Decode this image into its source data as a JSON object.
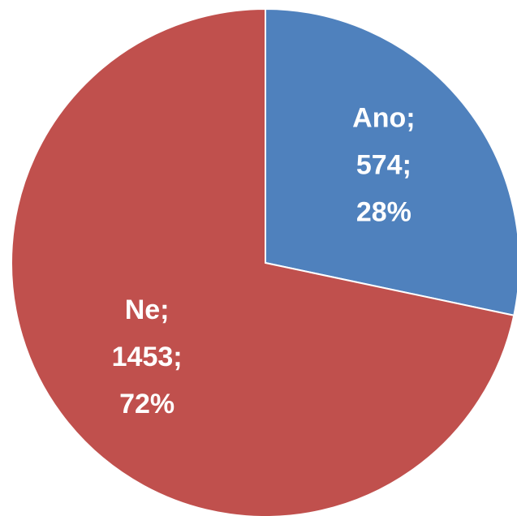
{
  "chart_data": {
    "type": "pie",
    "categories": [
      "Ano;",
      "Ne;"
    ],
    "values": [
      574,
      1453
    ],
    "value_labels": [
      "574;",
      "1453;"
    ],
    "percents": [
      28,
      72
    ],
    "percent_labels": [
      "28%",
      "72%"
    ],
    "colors": [
      "#4f81bd",
      "#c0504d"
    ]
  }
}
